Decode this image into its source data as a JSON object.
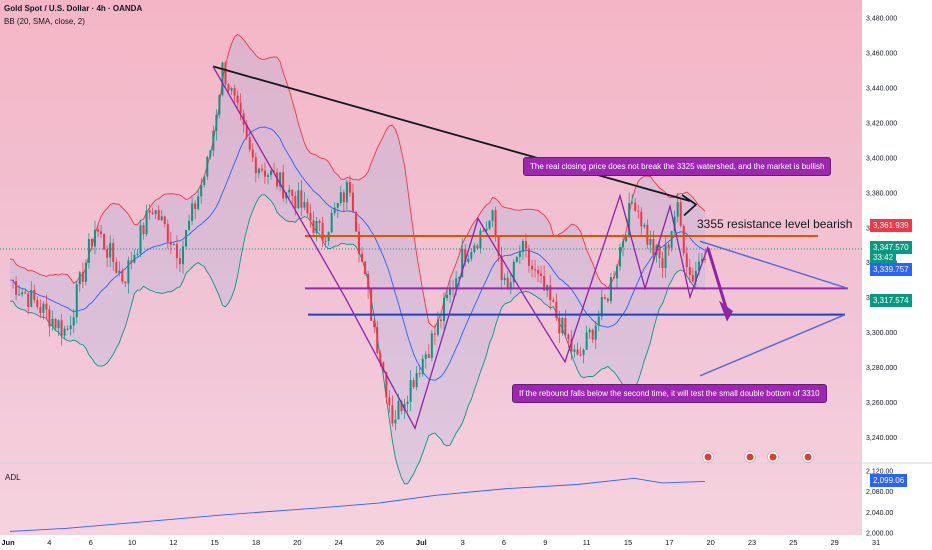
{
  "header": {
    "symbol": "Gold Spot / U.S. Dollar · 4h · OANDA",
    "indicator": "BB (20, SMA, close, 2)"
  },
  "adl_panel": {
    "label": "ADL"
  },
  "annotations": {
    "bullish_note": "The real closing price does not break the 3325 watershed, and the market is bullish",
    "resistance_note": "3355 resistance level bearish",
    "double_bottom_note": "If the rebound falls below the second time, it will test the small double bottom of 3310"
  },
  "price_labels": {
    "red": "3,361.939",
    "green_price": "3,347.570",
    "countdown": "33:42",
    "blue": "3,339.757",
    "green_low": "3,317.574",
    "adl_value": "2,099.06"
  },
  "colors": {
    "background": "#f6c9d4",
    "up_candle": "#089981",
    "down_candle": "#f23645",
    "bb_upper": "#f23645",
    "bb_basis": "#2962ff",
    "bb_lower": "#089981",
    "resistance_line": "#e65100",
    "midline": "#9c27b0",
    "support_line": "#1e40c8",
    "trend_line": "#131722",
    "adl_line": "#2962ff"
  },
  "chart_data": {
    "type": "candlestick",
    "title": "Gold Spot / U.S. Dollar · 4h · OANDA",
    "y_ticks": [
      3240,
      3260,
      3280,
      3300,
      3320,
      3340,
      3360,
      3380,
      3400,
      3420,
      3440,
      3460,
      3480
    ],
    "y_tick_labels": [
      "3,240.000",
      "3,260.000",
      "3,280.000",
      "3,300.000",
      "3,320.000",
      "3,340.000",
      "3,360.000",
      "3,380.000",
      "3,400.000",
      "3,420.000",
      "3,440.000",
      "3,460.000",
      "3,480.000"
    ],
    "ylim": [
      3228,
      3490
    ],
    "x_ticks": [
      "Jun",
      "4",
      "6",
      "10",
      "12",
      "15",
      "18",
      "20",
      "24",
      "26",
      "Jul",
      "3",
      "6",
      "9",
      "11",
      "15",
      "17",
      "20",
      "23",
      "25",
      "29",
      "31"
    ],
    "horizontal_levels": {
      "resistance": 3355,
      "watershed": 3325,
      "support": 3310
    },
    "price_path": [
      {
        "x": 0,
        "y": 3330
      },
      {
        "x": 4,
        "y": 3300
      },
      {
        "x": 6,
        "y": 3360
      },
      {
        "x": 8,
        "y": 3330
      },
      {
        "x": 10,
        "y": 3372
      },
      {
        "x": 12,
        "y": 3345
      },
      {
        "x": 14,
        "y": 3398
      },
      {
        "x": 15,
        "y": 3452
      },
      {
        "x": 17,
        "y": 3400
      },
      {
        "x": 20,
        "y": 3378
      },
      {
        "x": 22,
        "y": 3355
      },
      {
        "x": 24,
        "y": 3385
      },
      {
        "x": 25,
        "y": 3330
      },
      {
        "x": 27,
        "y": 3250
      },
      {
        "x": 30,
        "y": 3300
      },
      {
        "x": 32,
        "y": 3345
      },
      {
        "x": 34,
        "y": 3365
      },
      {
        "x": 35,
        "y": 3320
      },
      {
        "x": 36,
        "y": 3348
      },
      {
        "x": 38,
        "y": 3318
      },
      {
        "x": 40,
        "y": 3283
      },
      {
        "x": 42,
        "y": 3318
      },
      {
        "x": 44,
        "y": 3378
      },
      {
        "x": 45,
        "y": 3352
      },
      {
        "x": 46,
        "y": 3338
      },
      {
        "x": 47,
        "y": 3372
      },
      {
        "x": 48,
        "y": 3330
      },
      {
        "x": 49,
        "y": 3348
      }
    ],
    "adl": {
      "ylim": [
        1995,
        2125
      ],
      "y_ticks": [
        2000,
        2040,
        2080,
        2120
      ],
      "y_tick_labels": [
        "2,000.00",
        "2,040.00",
        "2,080.00",
        "2,120.00"
      ],
      "points": [
        {
          "x": 0,
          "y": 2002
        },
        {
          "x": 4,
          "y": 2008
        },
        {
          "x": 10,
          "y": 2022
        },
        {
          "x": 15,
          "y": 2034
        },
        {
          "x": 22,
          "y": 2048
        },
        {
          "x": 26,
          "y": 2057
        },
        {
          "x": 30,
          "y": 2072
        },
        {
          "x": 35,
          "y": 2085
        },
        {
          "x": 40,
          "y": 2093
        },
        {
          "x": 44,
          "y": 2105
        },
        {
          "x": 46,
          "y": 2096
        },
        {
          "x": 49,
          "y": 2099
        }
      ]
    }
  }
}
